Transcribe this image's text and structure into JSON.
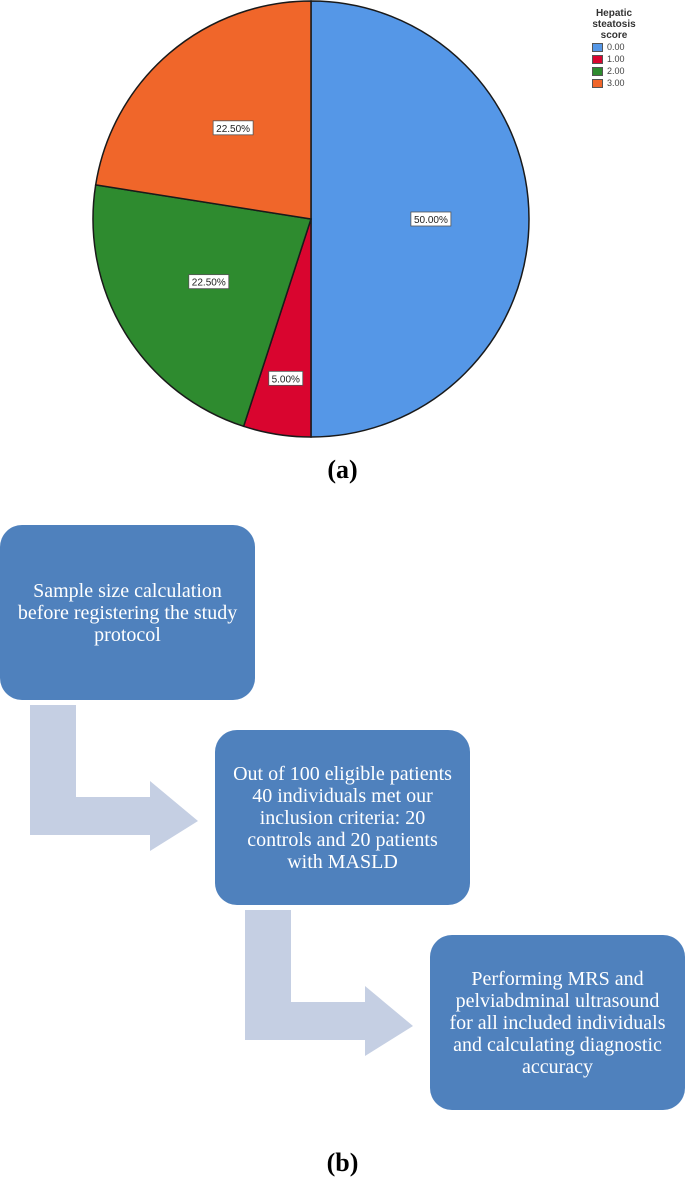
{
  "chart_data": {
    "type": "pie",
    "legend_title": "Hepatic steatosis score",
    "legend_position": "top-right",
    "categories": [
      "0.00",
      "1.00",
      "2.00",
      "3.00"
    ],
    "values": [
      50.0,
      5.0,
      22.5,
      22.5
    ],
    "labels": [
      "50.00%",
      "5.00%",
      "22.50%",
      "22.50%"
    ],
    "colors": [
      "#5597e7",
      "#d9052f",
      "#2e8b2f",
      "#f0662a"
    ]
  },
  "panels": {
    "a_label": "(a)",
    "b_label": "(b)"
  },
  "flowchart": {
    "box1": "Sample size calculation before registering the study protocol",
    "box2": "Out of 100 eligible patients 40 individuals met our inclusion criteria: 20 controls and 20 patients with MASLD",
    "box3": "Performing MRS and pelviabdminal ultrasound for all included individuals and calculating diagnostic accuracy",
    "box_color": "#4f81bd",
    "arrow_color": "#c5cfe3"
  }
}
